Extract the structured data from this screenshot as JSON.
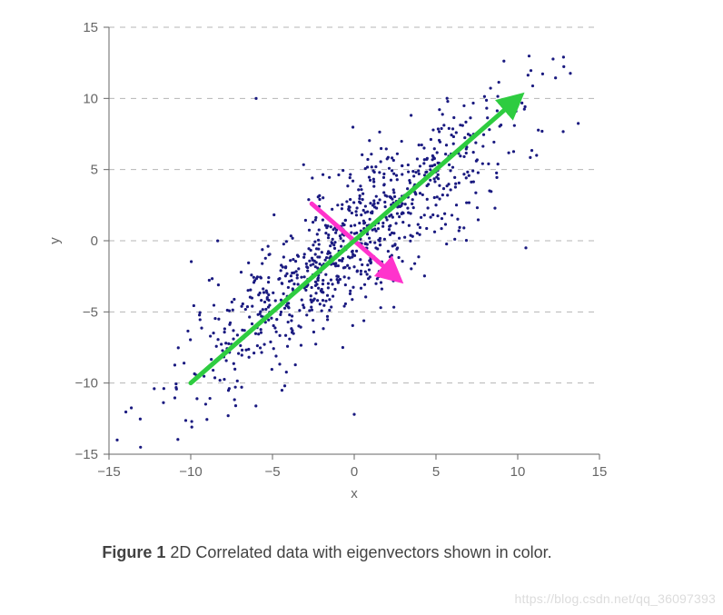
{
  "chart": {
    "type": "scatter",
    "xlabel": "x",
    "ylabel": "y",
    "xlim": [
      -15,
      15
    ],
    "ylim": [
      -15,
      15
    ],
    "xticks": [
      -15,
      -10,
      -5,
      0,
      5,
      10,
      15
    ],
    "yticks": [
      -15,
      -10,
      -5,
      0,
      5,
      10,
      15
    ],
    "tick_fontsize": 15,
    "label_fontsize": 15,
    "grid_color": "#b5b5b5",
    "grid_dash": "6,6",
    "axis_color": "#666666",
    "background_color": "#ffffff",
    "point_color": "#1a1a80",
    "point_radius": 1.6,
    "scatter_seed": 36097393,
    "scatter_n": 900,
    "scatter_cov": [
      [
        28,
        25
      ],
      [
        25,
        28
      ]
    ],
    "scatter_outliers": [
      [
        -14.5,
        -14.0
      ],
      [
        -6.0,
        10.0
      ],
      [
        0.0,
        -12.2
      ],
      [
        10.5,
        -0.5
      ],
      [
        12.8,
        12.9
      ]
    ],
    "eigvec1": {
      "from": [
        -10,
        -10
      ],
      "to": [
        10,
        10
      ],
      "color": "#2ecc40",
      "width": 5,
      "arrow": true
    },
    "eigvec2": {
      "from": [
        -2.6,
        2.6
      ],
      "to": [
        2.6,
        -2.6
      ],
      "color": "#ff33cc",
      "width": 5,
      "arrow": true
    }
  },
  "caption": {
    "label": "Figure 1",
    "text": "2D Correlated data with eigenvectors shown in color."
  },
  "watermark": "https://blog.csdn.net/qq_36097393"
}
